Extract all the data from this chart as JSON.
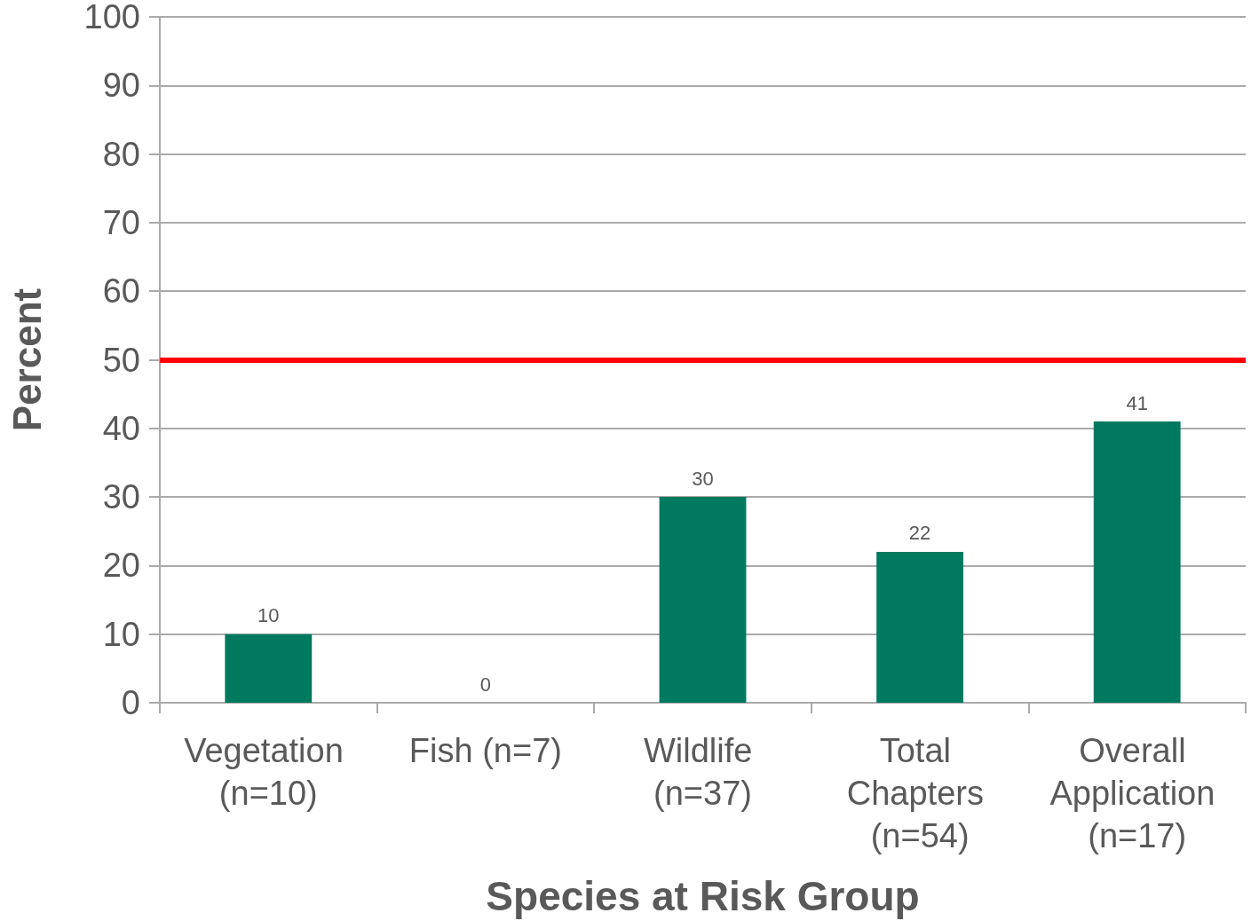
{
  "chart_data": {
    "type": "bar",
    "xlabel": "Species at Risk Group",
    "ylabel": "Percent",
    "categories": [
      "Vegetation (n=10)",
      "Fish (n=7)",
      "Wildlife (n=37)",
      "Total Chapters (n=54)",
      "Overall Application (n=17)"
    ],
    "values": [
      10,
      0,
      30,
      22,
      41
    ],
    "color": "#007a5e",
    "ylim": [
      0,
      100
    ],
    "yticks": [
      0,
      10,
      20,
      30,
      40,
      50,
      60,
      70,
      80,
      90,
      100
    ],
    "grid": "y",
    "data_labels": true,
    "ref_lines": [
      {
        "axis": "y",
        "value": 50,
        "color": "#ff0000"
      }
    ]
  }
}
